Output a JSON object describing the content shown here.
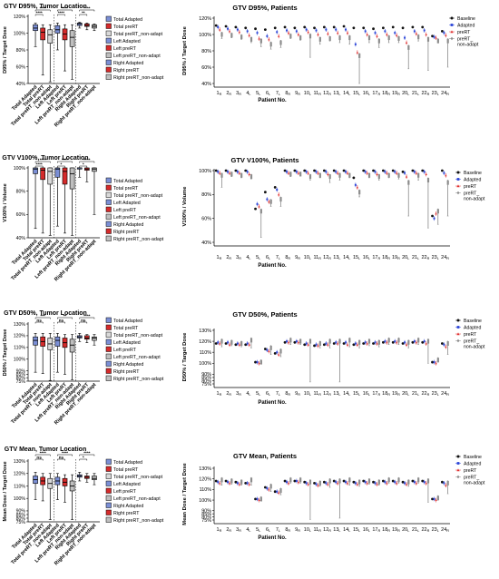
{
  "colors": {
    "total_adapted": "#7b8fd6",
    "total_prert": "#d52b2b",
    "total_prert_nonadapt": "#d9d9d9",
    "left_adapted": "#7b8fd6",
    "left_prert": "#d52b2b",
    "left_prert_nonadapt": "#bfbfbf",
    "right_adapted": "#7b8fd6",
    "right_prert": "#d52b2b",
    "right_prert_nonadapt": "#bfbfbf",
    "baseline": "#111111",
    "adapted": "#2c45d8",
    "prert": "#e03030",
    "prert_nonadapt": "#8c8c8c",
    "sig_red": "#d52b2b"
  },
  "location_legend": [
    "Total Adapted",
    "Total preRT",
    "Total preRT_non-adapt",
    "Left Adapted",
    "Left preRT",
    "Left preRT_non-adapt",
    "Right Adapted",
    "Right preRT",
    "Right preRT_non-adapt"
  ],
  "patient_legend": [
    "Baseline",
    "Adapted",
    "preRT",
    "preRT_non-adapt"
  ],
  "patient_ticks": [
    "1R",
    "2R",
    "3R",
    "4L",
    "5L",
    "6L",
    "7L",
    "8R",
    "9R",
    "10L",
    "11R",
    "12R",
    "13L",
    "14L",
    "15L",
    "16L",
    "17R",
    "18R",
    "19R",
    "20L",
    "21L",
    "22R",
    "23L",
    "24R"
  ],
  "chart_data": [
    {
      "type": "box",
      "id": "d95-location",
      "title": "GTV D95%, Tumor Location",
      "ylabel": "D95% / Target Dose",
      "ylim": [
        40,
        120
      ],
      "yticks": [
        "40%",
        "60%",
        "80%",
        "100%",
        "120%"
      ],
      "categories": [
        "Total Adapted",
        "Total preRT",
        "Total preRT_non-adapt",
        "Left Adapted",
        "Left preRT",
        "Left preRT_non-adapt",
        "Right Adapted",
        "Right preRT",
        "Right preRT_non-adapt"
      ],
      "boxes": [
        [
          84,
          103,
          106,
          110,
          112
        ],
        [
          50,
          92,
          101,
          106,
          110
        ],
        [
          42,
          88,
          98,
          104,
          110
        ],
        [
          80,
          100,
          104,
          109,
          112
        ],
        [
          55,
          92,
          99,
          105,
          110
        ],
        [
          45,
          84,
          95,
          103,
          110
        ],
        [
          106,
          109,
          111,
          112,
          113
        ],
        [
          104,
          108,
          109,
          111,
          112
        ],
        [
          103,
          106,
          108,
          110,
          111
        ]
      ],
      "significance": [
        {
          "from": 0,
          "to": 1,
          "level": 1,
          "text": "****",
          "color": "#000000"
        },
        {
          "from": 0,
          "to": 2,
          "level": 2,
          "text": "****",
          "color": "#000000"
        },
        {
          "from": 3,
          "to": 4,
          "level": 1,
          "text": "****",
          "color": "#000000"
        },
        {
          "from": 3,
          "to": 5,
          "level": 2,
          "text": "****",
          "color": "#000000"
        },
        {
          "from": 6,
          "to": 7,
          "level": 1,
          "text": "**",
          "color": "#000000"
        },
        {
          "from": 6,
          "to": 8,
          "level": 2,
          "text": "****",
          "color": "#000000"
        }
      ]
    },
    {
      "type": "box",
      "id": "v100-location",
      "title": "GTV V100%, Tumor Location",
      "ylabel": "V100% / Volume",
      "ylim": [
        40,
        100
      ],
      "yticks": [
        "40%",
        "60%",
        "80%",
        "100%"
      ],
      "categories": [
        "Total Adapted",
        "Total preRT",
        "Total preRT_non-adapt",
        "Left Adapted",
        "Left preRT",
        "Left preRT_non-adapt",
        "Right Adapted",
        "Right preRT",
        "Right preRT_non-adapt"
      ],
      "boxes": [
        [
          48,
          95,
          99,
          100,
          100
        ],
        [
          44,
          90,
          98,
          100,
          100
        ],
        [
          42,
          86,
          97,
          100,
          100
        ],
        [
          50,
          92,
          99,
          100,
          100
        ],
        [
          44,
          86,
          97,
          100,
          100
        ],
        [
          42,
          82,
          95,
          100,
          100
        ],
        [
          92,
          99,
          100,
          100,
          100
        ],
        [
          88,
          98,
          99,
          100,
          100
        ],
        [
          60,
          97,
          99,
          100,
          100
        ]
      ],
      "significance": [
        {
          "from": 0,
          "to": 1,
          "level": 1,
          "text": "****",
          "color": "#000000"
        },
        {
          "from": 0,
          "to": 2,
          "level": 2,
          "text": "****",
          "color": "#000000"
        },
        {
          "from": 3,
          "to": 4,
          "level": 1,
          "text": "*",
          "color": "#000000"
        },
        {
          "from": 3,
          "to": 5,
          "level": 2,
          "text": "****",
          "color": "#000000"
        },
        {
          "from": 6,
          "to": 7,
          "level": 1,
          "text": "*",
          "color": "#000000"
        },
        {
          "from": 6,
          "to": 8,
          "level": 2,
          "text": "****",
          "color": "#000000"
        }
      ]
    },
    {
      "type": "box",
      "id": "d50-location",
      "title": "GTV D50%, Tumor Location",
      "ylabel": "D50% / Target Dose",
      "ylim": [
        75,
        130
      ],
      "yticks": [
        "75%",
        "80%",
        "85%",
        "90%",
        "100%",
        "110%",
        "120%",
        "130%"
      ],
      "categories": [
        "Total Adapted",
        "Total preRT",
        "Total preRT_non-adapt",
        "Left Adapted",
        "Left preRT",
        "Left preRT_non-adapt",
        "Right Adapted",
        "Right preRT",
        "Right preRT_non-adapt"
      ],
      "boxes": [
        [
          88,
          112,
          116,
          119,
          122
        ],
        [
          86,
          111,
          115,
          119,
          122
        ],
        [
          76,
          108,
          113,
          118,
          122
        ],
        [
          88,
          111,
          116,
          119,
          122
        ],
        [
          85,
          110,
          114,
          118,
          121
        ],
        [
          77,
          106,
          112,
          117,
          121
        ],
        [
          115,
          118,
          119,
          120,
          122
        ],
        [
          114,
          117,
          118,
          120,
          121
        ],
        [
          112,
          116,
          118,
          119,
          121
        ]
      ],
      "significance": [
        {
          "from": 0,
          "to": 1,
          "level": 1,
          "text": "ns",
          "color": "#d52b2b"
        },
        {
          "from": 0,
          "to": 2,
          "level": 2,
          "text": "***",
          "color": "#d52b2b"
        },
        {
          "from": 3,
          "to": 4,
          "level": 1,
          "text": "ns",
          "color": "#000000"
        },
        {
          "from": 3,
          "to": 5,
          "level": 2,
          "text": "**",
          "color": "#000000"
        },
        {
          "from": 6,
          "to": 7,
          "level": 1,
          "text": "ns",
          "color": "#000000"
        },
        {
          "from": 6,
          "to": 8,
          "level": 2,
          "text": "****",
          "color": "#d52b2b"
        }
      ]
    },
    {
      "type": "box",
      "id": "mean-location",
      "title": "GTV Mean, Tumor Location",
      "ylabel": "Mean Dose / Target Dose",
      "ylim": [
        75,
        130
      ],
      "yticks": [
        "75%",
        "80%",
        "85%",
        "90%",
        "100%",
        "110%",
        "120%",
        "130%"
      ],
      "categories": [
        "Total Adapted",
        "Total preRT",
        "Total preRT_non-adapt",
        "Left Adapted",
        "Left preRT",
        "Left preRT_non-adapt",
        "Right Adapted",
        "Right preRT",
        "Right preRT_non-adapt"
      ],
      "boxes": [
        [
          99,
          112,
          115,
          118,
          121
        ],
        [
          98,
          111,
          114,
          117,
          120
        ],
        [
          78,
          108,
          112,
          116,
          120
        ],
        [
          99,
          111,
          114,
          117,
          120
        ],
        [
          97,
          110,
          113,
          116,
          119
        ],
        [
          78,
          106,
          110,
          114,
          119
        ],
        [
          114,
          117,
          118,
          119,
          121
        ],
        [
          113,
          116,
          117,
          118,
          120
        ],
        [
          111,
          115,
          116,
          118,
          120
        ]
      ],
      "significance": [
        {
          "from": 0,
          "to": 1,
          "level": 1,
          "text": "ns",
          "color": "#000000"
        },
        {
          "from": 0,
          "to": 2,
          "level": 2,
          "text": "****",
          "color": "#000000"
        },
        {
          "from": 3,
          "to": 4,
          "level": 1,
          "text": "ns",
          "color": "#000000"
        },
        {
          "from": 3,
          "to": 5,
          "level": 2,
          "text": "****",
          "color": "#000000"
        },
        {
          "from": 6,
          "to": 7,
          "level": 1,
          "text": "*",
          "color": "#d52b2b"
        },
        {
          "from": 6,
          "to": 8,
          "level": 2,
          "text": "****",
          "color": "#000000"
        }
      ]
    },
    {
      "type": "scatter",
      "id": "d95-patients",
      "title": "GTV D95%, Patients",
      "ylabel": "D95% / Target Dose",
      "xlabel": "Patient  No.",
      "ylim": [
        40,
        120
      ],
      "yticks": [
        "40%",
        "60%",
        "80%",
        "100%",
        "120%"
      ],
      "baseline": [
        111,
        110,
        109,
        108,
        107,
        106,
        108,
        109,
        108,
        109,
        108,
        109,
        109,
        110,
        108,
        108,
        107,
        108,
        109,
        108,
        109,
        109,
        98,
        104
      ],
      "adapted": [
        109,
        107,
        106,
        104,
        102,
        98,
        103,
        105,
        104,
        106,
        105,
        106,
        106,
        106,
        88,
        104,
        102,
        104,
        102,
        96,
        104,
        105,
        97,
        102
      ],
      "prert": [
        106,
        104,
        103,
        99,
        95,
        94,
        98,
        102,
        100,
        103,
        100,
        101,
        102,
        102,
        78,
        100,
        98,
        100,
        99,
        90,
        101,
        100,
        96,
        99
      ],
      "nonadapt_median": [
        100,
        99,
        97,
        94,
        92,
        88,
        90,
        98,
        96,
        98,
        94,
        95,
        96,
        96,
        74,
        96,
        92,
        96,
        95,
        84,
        97,
        94,
        92,
        92
      ],
      "nonadapt_min": [
        95,
        96,
        94,
        90,
        85,
        82,
        84,
        95,
        93,
        72,
        88,
        92,
        90,
        88,
        40,
        90,
        84,
        90,
        90,
        58,
        92,
        56,
        90,
        60
      ]
    },
    {
      "type": "scatter",
      "id": "v100-patients",
      "title": "GTV V100%, Patients",
      "ylabel": "V100% / Volume",
      "xlabel": "Patient No.",
      "ylim": [
        40,
        100
      ],
      "yticks": [
        "40%",
        "60%",
        "80%",
        "100%"
      ],
      "baseline": [
        100,
        100,
        100,
        100,
        68,
        82,
        86,
        100,
        100,
        100,
        100,
        100,
        100,
        100,
        94,
        100,
        100,
        100,
        100,
        99,
        100,
        100,
        62,
        100
      ],
      "adapted": [
        99,
        99,
        99,
        99,
        72,
        76,
        84,
        99,
        99,
        99,
        99,
        99,
        99,
        99,
        88,
        99,
        99,
        99,
        99,
        98,
        99,
        99,
        60,
        98
      ],
      "prert": [
        98,
        98,
        98,
        97,
        70,
        74,
        80,
        98,
        98,
        98,
        98,
        97,
        98,
        98,
        86,
        98,
        97,
        98,
        98,
        95,
        98,
        97,
        64,
        96
      ],
      "nonadapt_median": [
        96,
        97,
        96,
        95,
        66,
        74,
        76,
        97,
        97,
        95,
        96,
        95,
        96,
        96,
        82,
        96,
        95,
        96,
        96,
        90,
        96,
        92,
        66,
        90
      ],
      "nonadapt_min": [
        86,
        95,
        94,
        93,
        44,
        70,
        70,
        95,
        96,
        92,
        94,
        90,
        92,
        94,
        78,
        94,
        92,
        94,
        93,
        62,
        92,
        52,
        55,
        62
      ]
    },
    {
      "type": "scatter",
      "id": "d50-patients",
      "title": "GTV D50%, Patients",
      "ylabel": "D50% / Target Dose",
      "xlabel": "Patient No.",
      "ylim": [
        75,
        130
      ],
      "yticks": [
        "75%",
        "80%",
        "85%",
        "90%",
        "100%",
        "110%",
        "120%",
        "130%"
      ],
      "baseline": [
        118,
        118,
        117,
        117,
        101,
        113,
        109,
        119,
        119,
        117,
        116,
        117,
        118,
        118,
        117,
        118,
        118,
        119,
        119,
        118,
        119,
        119,
        101,
        118
      ],
      "adapted": [
        119,
        119,
        118,
        118,
        101,
        112,
        110,
        120,
        120,
        118,
        117,
        118,
        119,
        119,
        118,
        119,
        119,
        120,
        120,
        119,
        120,
        120,
        101,
        117
      ],
      "prert": [
        118,
        117,
        117,
        117,
        100,
        111,
        108,
        119,
        119,
        117,
        116,
        117,
        118,
        117,
        117,
        118,
        118,
        119,
        119,
        117,
        119,
        118,
        100,
        115
      ],
      "nonadapt_median": [
        120,
        119,
        118,
        121,
        101,
        114,
        111,
        121,
        120,
        120,
        118,
        120,
        120,
        121,
        119,
        120,
        119,
        121,
        121,
        119,
        121,
        120,
        103,
        118
      ],
      "nonadapt_min": [
        115,
        116,
        115,
        114,
        100,
        108,
        106,
        117,
        117,
        78,
        114,
        114,
        78,
        115,
        114,
        116,
        115,
        117,
        117,
        114,
        117,
        100,
        101,
        108
      ]
    },
    {
      "type": "scatter",
      "id": "mean-patients",
      "title": "GTV Mean, Patients",
      "ylabel": "Mean Dose / Target Dose",
      "xlabel": "Patient No.",
      "ylim": [
        75,
        130
      ],
      "yticks": [
        "75%",
        "80%",
        "85%",
        "90%",
        "100%",
        "110%",
        "120%",
        "130%"
      ],
      "baseline": [
        118,
        118,
        117,
        116,
        101,
        112,
        108,
        118,
        118,
        117,
        116,
        117,
        118,
        118,
        117,
        118,
        117,
        118,
        118,
        117,
        118,
        118,
        101,
        117
      ],
      "adapted": [
        117,
        117,
        116,
        116,
        101,
        111,
        108,
        117,
        118,
        116,
        115,
        116,
        117,
        117,
        116,
        117,
        116,
        117,
        117,
        116,
        117,
        117,
        101,
        116
      ],
      "prert": [
        116,
        116,
        115,
        115,
        100,
        110,
        107,
        116,
        117,
        115,
        114,
        115,
        116,
        116,
        115,
        116,
        115,
        116,
        116,
        115,
        116,
        116,
        100,
        114
      ],
      "nonadapt_median": [
        119,
        118,
        117,
        119,
        101,
        113,
        109,
        119,
        119,
        117,
        116,
        118,
        118,
        119,
        117,
        118,
        117,
        119,
        119,
        117,
        119,
        118,
        102,
        116
      ],
      "nonadapt_min": [
        114,
        115,
        114,
        114,
        99,
        108,
        105,
        116,
        116,
        76,
        113,
        112,
        78,
        114,
        113,
        115,
        114,
        116,
        116,
        113,
        116,
        98,
        100,
        106
      ]
    }
  ]
}
